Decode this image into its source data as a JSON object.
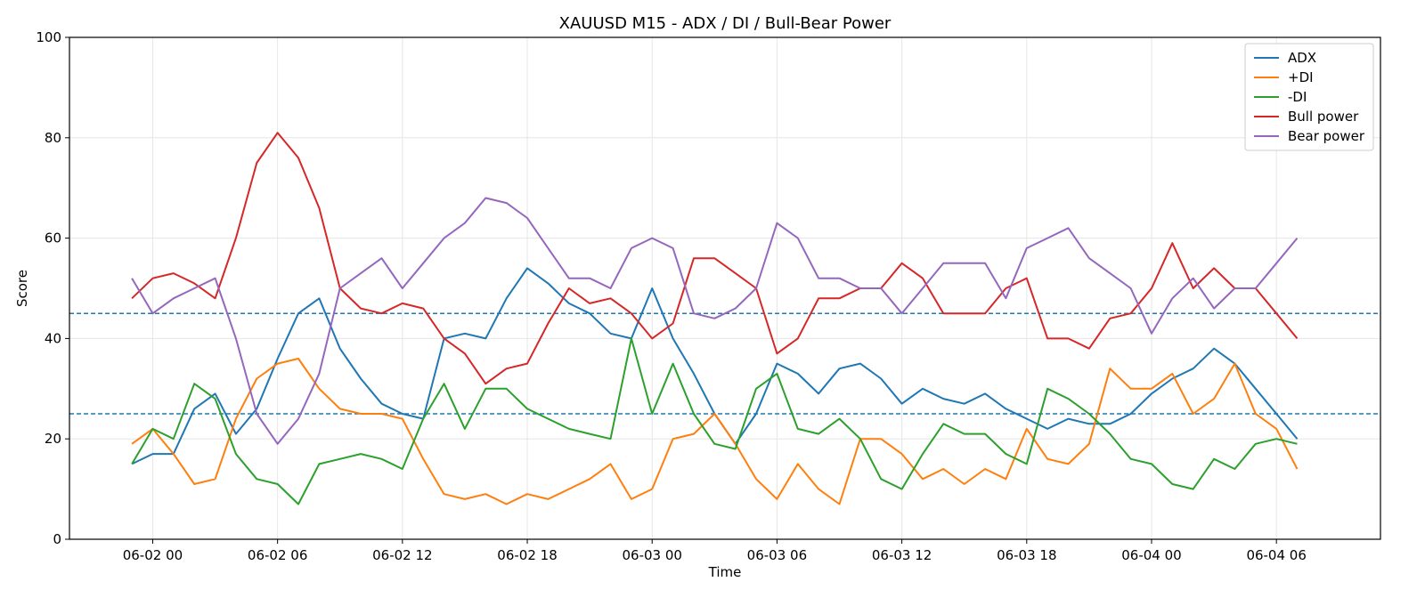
{
  "chart_data": {
    "type": "line",
    "title": "XAUUSD M15 - ADX / DI / Bull-Bear Power",
    "xlabel": "Time",
    "ylabel": "Score",
    "x": [
      "06-01 23",
      "06-02 00",
      "06-02 01",
      "06-02 02",
      "06-02 03",
      "06-02 04",
      "06-02 05",
      "06-02 06",
      "06-02 07",
      "06-02 08",
      "06-02 09",
      "06-02 10",
      "06-02 11",
      "06-02 12",
      "06-02 13",
      "06-02 14",
      "06-02 15",
      "06-02 16",
      "06-02 17",
      "06-02 18",
      "06-02 19",
      "06-02 20",
      "06-02 21",
      "06-02 22",
      "06-02 23",
      "06-03 00",
      "06-03 01",
      "06-03 02",
      "06-03 03",
      "06-03 04",
      "06-03 05",
      "06-03 06",
      "06-03 07",
      "06-03 08",
      "06-03 09",
      "06-03 10",
      "06-03 11",
      "06-03 12",
      "06-03 13",
      "06-03 14",
      "06-03 15",
      "06-03 16",
      "06-03 17",
      "06-03 18",
      "06-03 19",
      "06-03 20",
      "06-03 21",
      "06-03 22",
      "06-03 23",
      "06-04 00",
      "06-04 01",
      "06-04 02",
      "06-04 03",
      "06-04 04",
      "06-04 05",
      "06-04 06",
      "06-04 07"
    ],
    "series": [
      {
        "name": "ADX",
        "color": "#1f77b4",
        "values": [
          15,
          17,
          17,
          26,
          29,
          21,
          26,
          36,
          45,
          48,
          38,
          32,
          27,
          25,
          24,
          40,
          41,
          40,
          48,
          54,
          51,
          47,
          45,
          41,
          40,
          50,
          40,
          33,
          25,
          19,
          25,
          35,
          33,
          29,
          34,
          35,
          32,
          27,
          30,
          28,
          27,
          29,
          26,
          24,
          22,
          24,
          23,
          23,
          25,
          29,
          32,
          34,
          38,
          35,
          30,
          25,
          20
        ]
      },
      {
        "name": "+DI",
        "color": "#ff7f0e",
        "values": [
          19,
          22,
          17,
          11,
          12,
          24,
          32,
          35,
          36,
          30,
          26,
          25,
          25,
          24,
          16,
          9,
          8,
          9,
          7,
          9,
          8,
          10,
          12,
          15,
          8,
          10,
          20,
          21,
          25,
          19,
          12,
          8,
          15,
          10,
          7,
          20,
          20,
          17,
          12,
          14,
          11,
          14,
          12,
          22,
          16,
          15,
          19,
          34,
          30,
          30,
          33,
          25,
          28,
          35,
          25,
          22,
          14
        ]
      },
      {
        "name": "-DI",
        "color": "#2ca02c",
        "values": [
          15,
          22,
          20,
          31,
          28,
          17,
          12,
          11,
          7,
          15,
          16,
          17,
          16,
          14,
          24,
          31,
          22,
          30,
          30,
          26,
          24,
          22,
          21,
          20,
          40,
          25,
          35,
          25,
          19,
          18,
          30,
          33,
          22,
          21,
          24,
          20,
          12,
          10,
          17,
          23,
          21,
          21,
          17,
          15,
          30,
          28,
          25,
          21,
          16,
          15,
          11,
          10,
          16,
          14,
          19,
          20,
          19
        ]
      },
      {
        "name": "Bull power",
        "color": "#d62728",
        "values": [
          48,
          52,
          53,
          51,
          48,
          60,
          75,
          81,
          76,
          66,
          50,
          46,
          45,
          47,
          46,
          40,
          37,
          31,
          34,
          35,
          43,
          50,
          47,
          48,
          45,
          40,
          43,
          56,
          56,
          53,
          50,
          37,
          40,
          48,
          48,
          50,
          50,
          55,
          52,
          45,
          45,
          45,
          50,
          52,
          40,
          40,
          38,
          44,
          45,
          50,
          59,
          50,
          54,
          50,
          50,
          45,
          40
        ]
      },
      {
        "name": "Bear power",
        "color": "#9467bd",
        "values": [
          52,
          45,
          48,
          50,
          52,
          40,
          25,
          19,
          24,
          33,
          50,
          53,
          56,
          50,
          55,
          60,
          63,
          68,
          67,
          64,
          58,
          52,
          52,
          50,
          58,
          60,
          58,
          45,
          44,
          46,
          50,
          63,
          60,
          52,
          52,
          50,
          50,
          45,
          50,
          55,
          55,
          55,
          48,
          58,
          60,
          62,
          56,
          53,
          50,
          41,
          48,
          52,
          46,
          50,
          50,
          55,
          60
        ]
      }
    ],
    "hlines": [
      {
        "value": 45,
        "color": "#1f77b4"
      },
      {
        "value": 25,
        "color": "#1f77b4"
      }
    ],
    "xlim": [
      "06-01 20",
      "06-04 11"
    ],
    "xticks": [
      "06-02 00",
      "06-02 06",
      "06-02 12",
      "06-02 18",
      "06-03 00",
      "06-03 06",
      "06-03 12",
      "06-03 18",
      "06-04 00",
      "06-04 06"
    ],
    "ylim": [
      0,
      100
    ],
    "yticks": [
      0,
      20,
      40,
      60,
      80,
      100
    ],
    "grid": true,
    "legend": "upper right"
  }
}
